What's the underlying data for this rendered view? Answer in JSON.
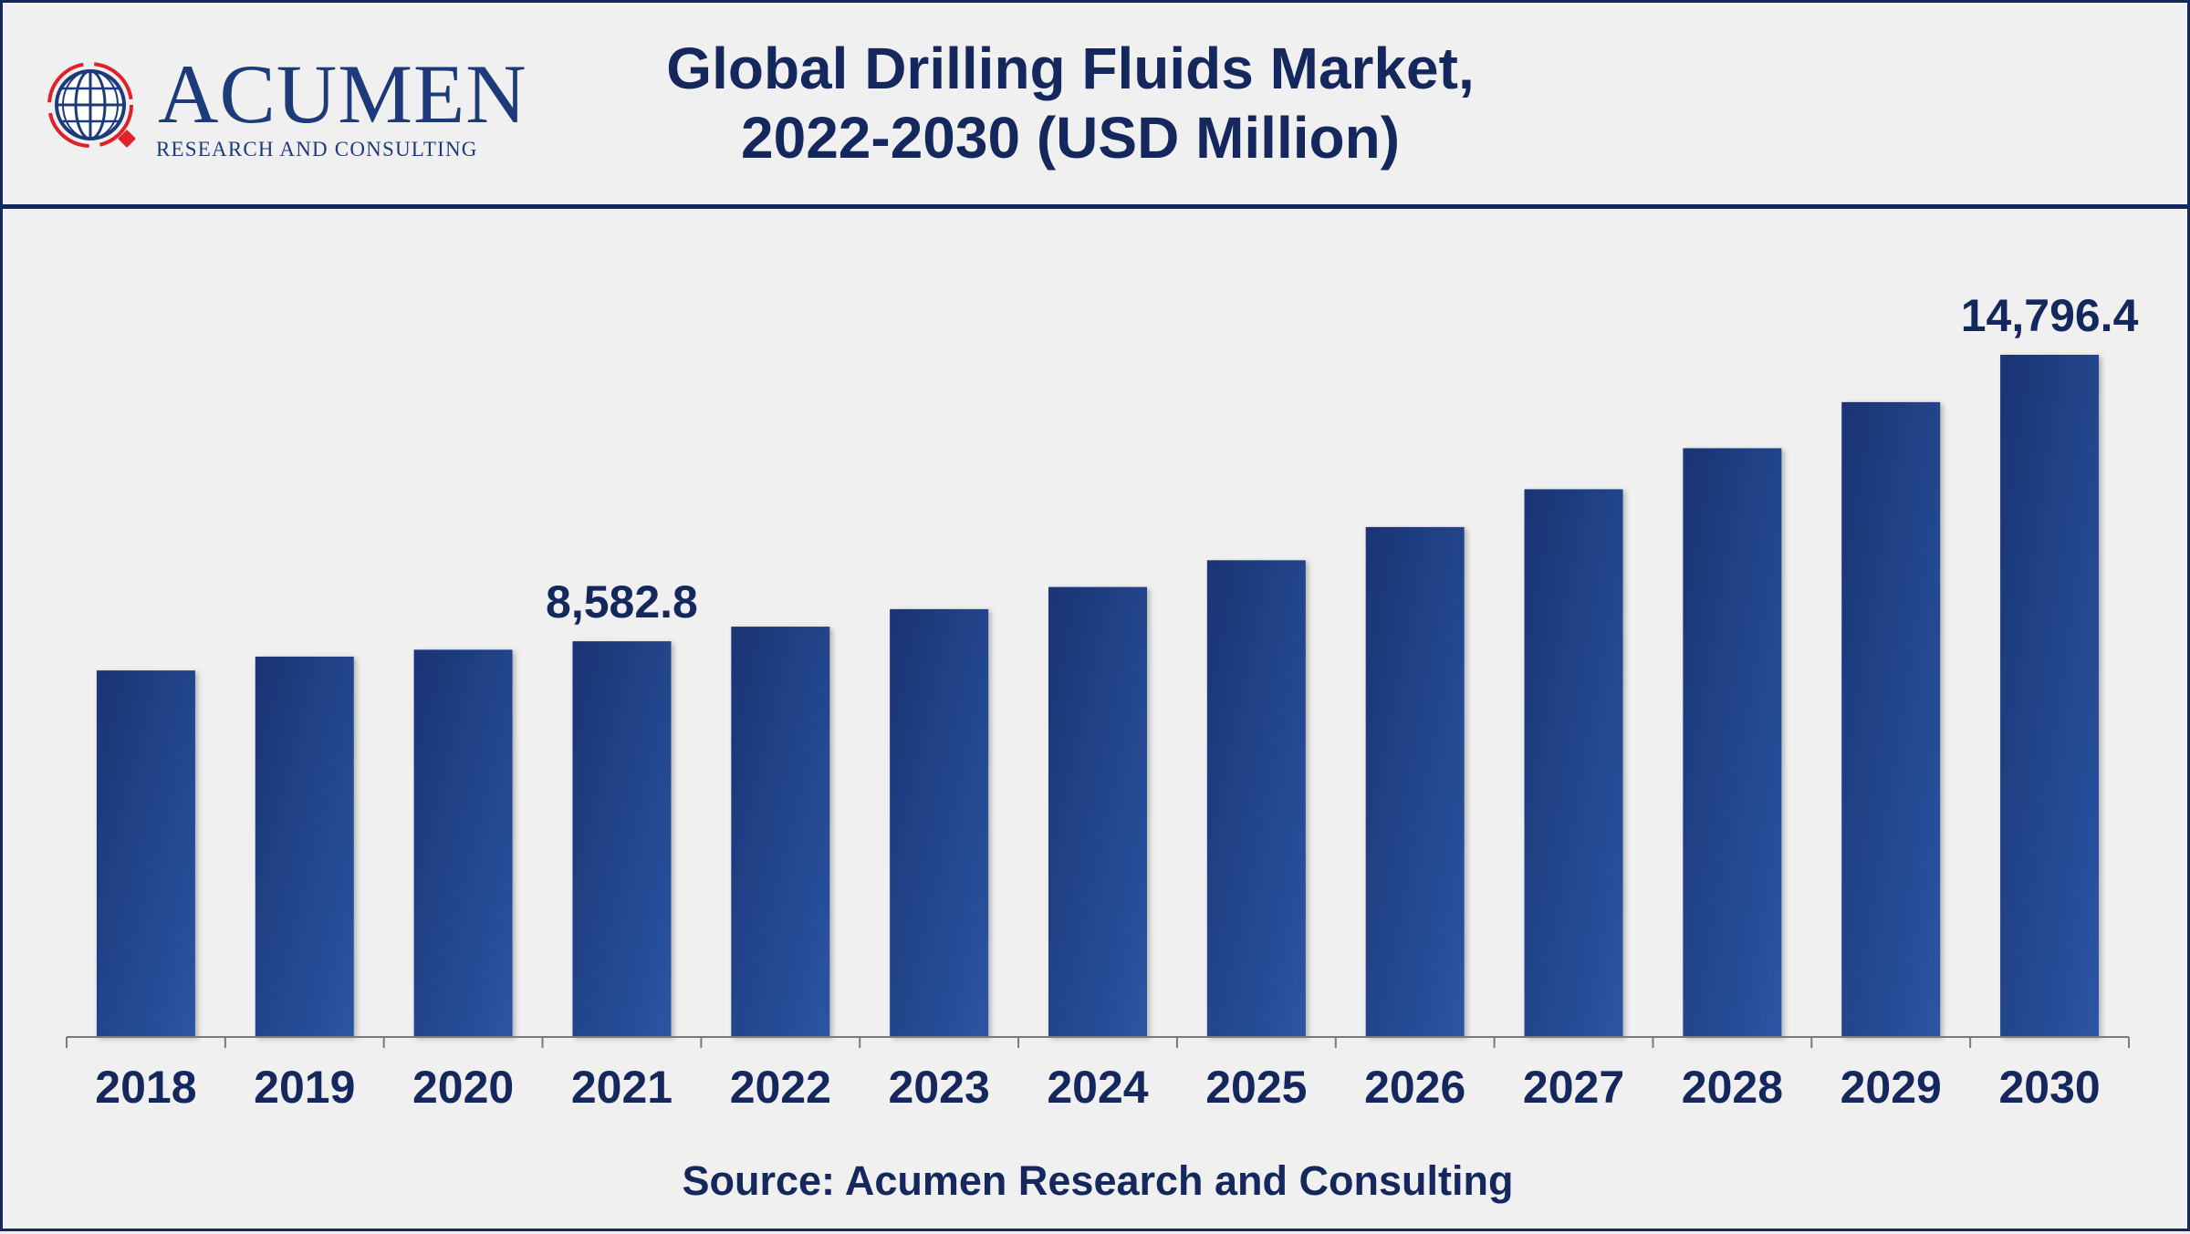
{
  "header": {
    "title_line1": "Global Drilling Fluids Market,",
    "title_line2": "2022-2030 (USD Million)"
  },
  "logo": {
    "wordmark": "ACUMEN",
    "tagline": "RESEARCH AND CONSULTING"
  },
  "source": "Source: Acumen Research and Consulting",
  "colors": {
    "bar": "#1f3f85",
    "bar_light": "#2b55a3",
    "text": "#14285e",
    "accent_red": "#e0202a"
  },
  "chart_data": {
    "type": "bar",
    "title": "Global Drilling Fluids Market, 2022-2030 (USD Million)",
    "categories": [
      "2018",
      "2019",
      "2020",
      "2021",
      "2022",
      "2023",
      "2024",
      "2025",
      "2026",
      "2027",
      "2028",
      "2029",
      "2030"
    ],
    "values": [
      7950,
      8250,
      8400,
      8582.8,
      8900,
      9280,
      9760,
      10340,
      11060,
      11880,
      12770,
      13770,
      14796.4
    ],
    "data_labels": [
      {
        "category": "2021",
        "text": "8,582.8"
      },
      {
        "category": "2030",
        "text": "14,796.4"
      }
    ],
    "xlabel": "",
    "ylabel": "",
    "ylim": [
      0,
      16000
    ],
    "grid": false,
    "legend": "none"
  }
}
